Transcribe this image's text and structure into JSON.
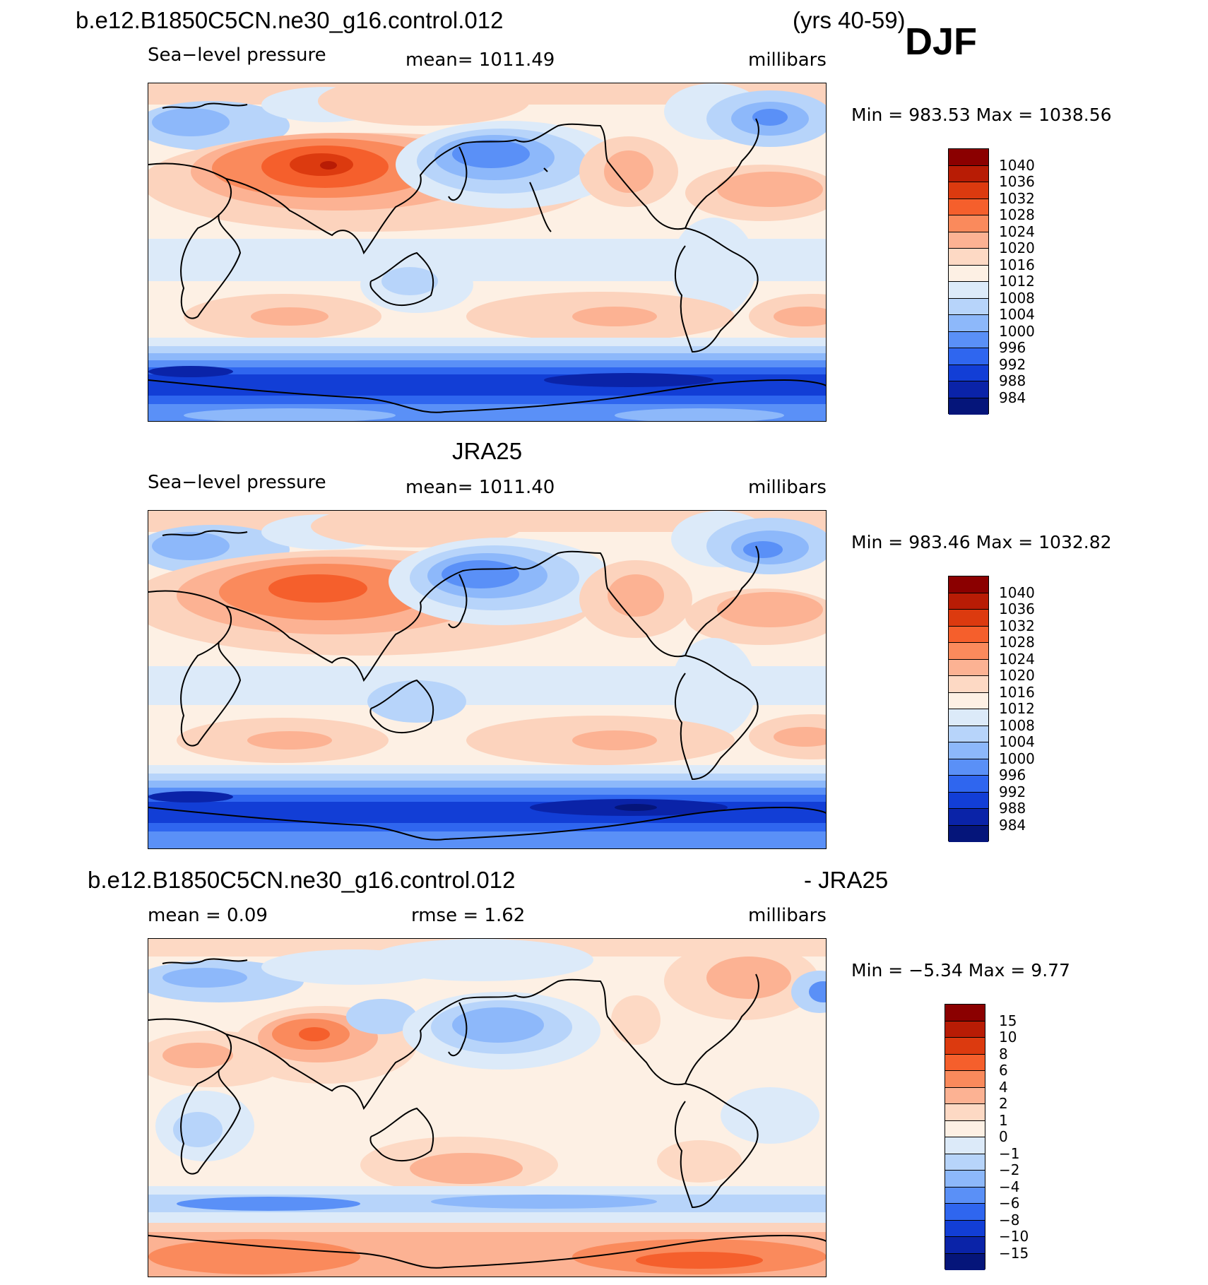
{
  "header": {
    "case_name": "b.e12.B1850C5CN.ne30_g16.control.012",
    "years": "(yrs 40-59)",
    "season": "DJF"
  },
  "panels": [
    {
      "title": "",
      "variable": "Sea−level pressure",
      "mean_text": "mean=  1011.49",
      "units": "millibars",
      "minmax": "Min  =  983.53  Max  =  1038.56",
      "palette": "abs"
    },
    {
      "title": "JRA25",
      "variable": "Sea−level pressure",
      "mean_text": "mean=  1011.40",
      "units": "millibars",
      "minmax": "Min  =  983.46  Max  =  1032.82",
      "palette": "abs"
    },
    {
      "title_left": "b.e12.B1850C5CN.ne30_g16.control.012",
      "title_right": "- JRA25",
      "mean_text": "mean  =     0.09",
      "rmse_text": "rmse  =     1.62",
      "units": "millibars",
      "minmax": "Min  =    −5.34  Max  =      9.77",
      "palette": "diff"
    }
  ],
  "legend_abs": {
    "labels": [
      "1040",
      "1036",
      "1032",
      "1028",
      "1024",
      "1020",
      "1016",
      "1012",
      "1008",
      "1004",
      "1000",
      "996",
      "992",
      "988",
      "984"
    ],
    "colors": [
      "#8b0000",
      "#b81c05",
      "#dc3a0f",
      "#f55f2c",
      "#fa8a5c",
      "#fcb293",
      "#fdd9c4",
      "#fdf0e4",
      "#dceaf9",
      "#b7d4fa",
      "#8db8fa",
      "#5a90f7",
      "#2f66ef",
      "#123ed6",
      "#0a23a8",
      "#05157a"
    ]
  },
  "legend_diff": {
    "labels": [
      "15",
      "10",
      "8",
      "6",
      "4",
      "2",
      "1",
      "0",
      "−1",
      "−2",
      "−4",
      "−6",
      "−8",
      "−10",
      "−15"
    ],
    "colors": [
      "#8b0000",
      "#b81c05",
      "#dc3a0f",
      "#f55f2c",
      "#fa8a5c",
      "#fcb293",
      "#fdd9c4",
      "#fdf0e4",
      "#dceaf9",
      "#b7d4fa",
      "#8db8fa",
      "#5a90f7",
      "#2f66ef",
      "#123ed6",
      "#0a23a8",
      "#05157a"
    ]
  }
}
